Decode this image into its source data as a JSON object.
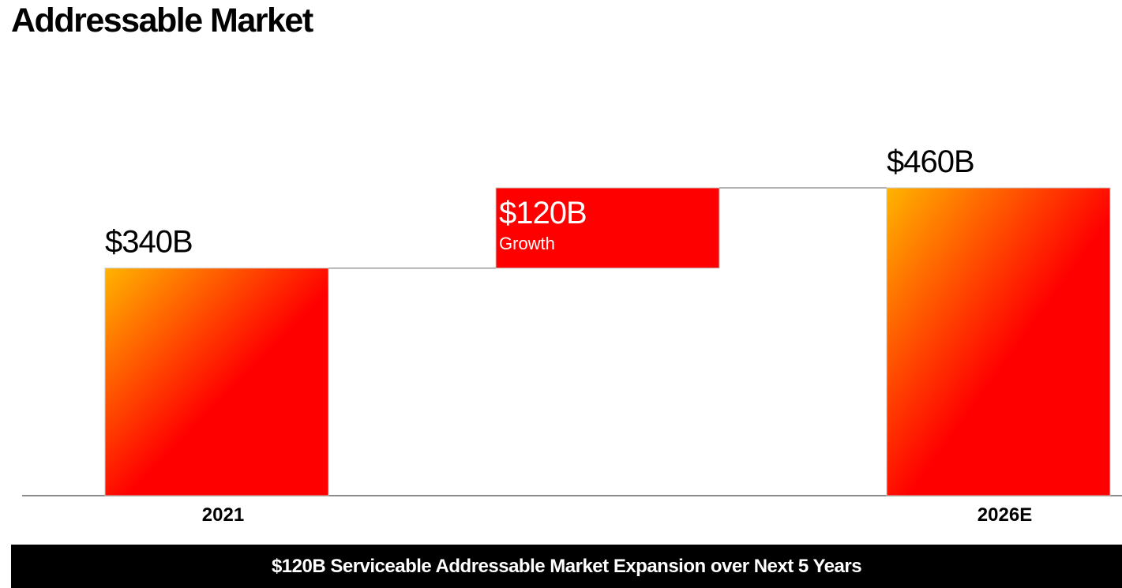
{
  "page": {
    "title": "Addressable Market",
    "footer": "$120B Serviceable Addressable Market Expansion over Next 5 Years"
  },
  "colors": {
    "gradient_start": "#ffb400",
    "gradient_end": "#ff0000",
    "growth_fill": "#ff0000",
    "connector": "#9a9a9a",
    "baseline": "#8c8c8c",
    "footer_bg": "#000000"
  },
  "chart_data": {
    "type": "waterfall",
    "title": "Addressable Market",
    "unit": "$B",
    "ylim": [
      0,
      460
    ],
    "categories": [
      "2021",
      "",
      "2026E"
    ],
    "bars": [
      {
        "category": "2021",
        "kind": "total",
        "value": 340,
        "label": "$340B"
      },
      {
        "category": "",
        "kind": "increase",
        "value": 120,
        "base": 340,
        "label": "$120B",
        "sublabel": "Growth"
      },
      {
        "category": "2026E",
        "kind": "total",
        "value": 460,
        "label": "$460B"
      }
    ]
  }
}
